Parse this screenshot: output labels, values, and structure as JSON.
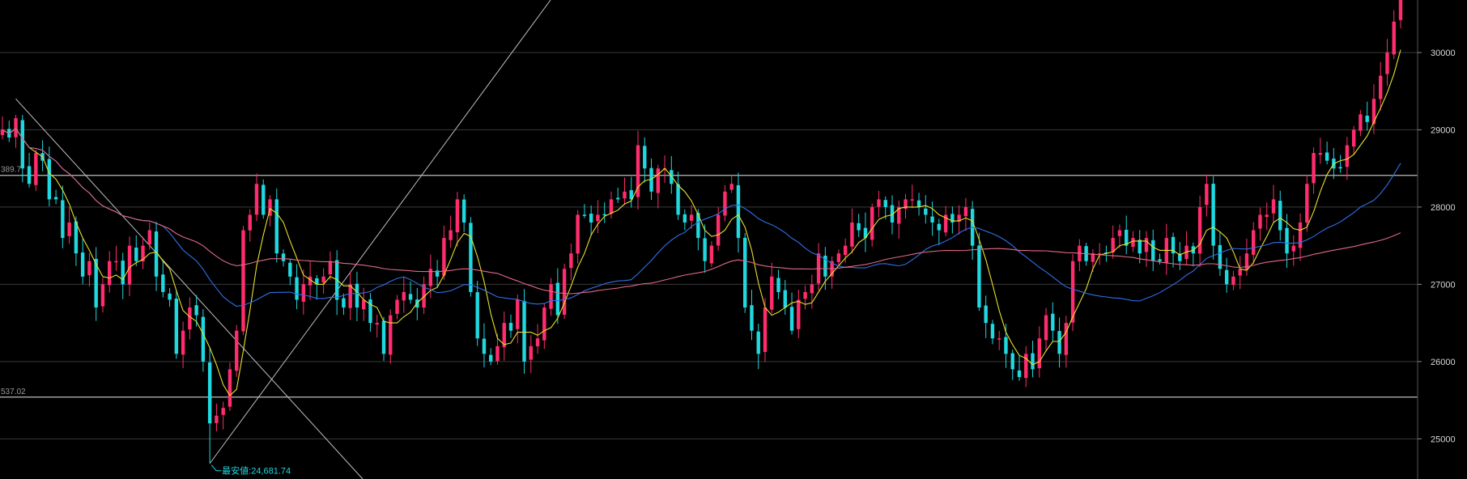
{
  "chart_data": {
    "type": "candlestick",
    "title": "",
    "xlabel": "",
    "ylabel": "",
    "ylim": [
      24480,
      30680
    ],
    "grid": true,
    "y_ticks": [
      25000,
      26000,
      27000,
      28000,
      29000,
      30000
    ],
    "y_tick_labels": [
      "25000",
      "26000",
      "27000",
      "28000",
      "29000",
      "30000"
    ],
    "close": [
      29000,
      28900,
      29150,
      28500,
      28300,
      28700,
      28600,
      28100,
      28100,
      27600,
      27800,
      27400,
      27100,
      27300,
      26700,
      27000,
      27300,
      27300,
      27000,
      27500,
      27300,
      27500,
      27700,
      27100,
      26900,
      26800,
      26100,
      26400,
      26700,
      26600,
      26000,
      25200,
      25300,
      25400,
      25900,
      26400,
      27700,
      27900,
      28300,
      27900,
      28100,
      27400,
      27300,
      27100,
      26800,
      27000,
      27100,
      27000,
      27100,
      27300,
      26800,
      26700,
      27000,
      26700,
      26800,
      26500,
      26500,
      26100,
      26600,
      26800,
      26900,
      26800,
      26700,
      27000,
      27200,
      27100,
      27600,
      27700,
      28100,
      27800,
      26900,
      26300,
      26100,
      26000,
      26200,
      26500,
      26400,
      26800,
      26000,
      26200,
      26300,
      26700,
      27000,
      26600,
      27200,
      27400,
      27900,
      27900,
      27800,
      27900,
      27900,
      28100,
      28100,
      28200,
      28100,
      28800,
      28500,
      28200,
      28500,
      28500,
      28300,
      27900,
      27800,
      27900,
      27600,
      27300,
      27500,
      27900,
      28200,
      28300,
      27600,
      26700,
      26400,
      26100,
      26700,
      27100,
      26900,
      26700,
      26400,
      26800,
      26900,
      27000,
      27400,
      27100,
      27300,
      27400,
      27500,
      27800,
      27700,
      27600,
      28000,
      28100,
      28000,
      27800,
      28000,
      28100,
      28100,
      28000,
      27900,
      27800,
      27700,
      27900,
      27800,
      27900,
      28000,
      27500,
      26700,
      26500,
      26300,
      26300,
      26100,
      25900,
      25800,
      26100,
      25900,
      26300,
      26600,
      26400,
      26100,
      26500,
      27300,
      27500,
      27300,
      27400,
      27400,
      27400,
      27600,
      27700,
      27500,
      27600,
      27400,
      27600,
      27300,
      27300,
      27600,
      27400,
      27300,
      27500,
      27400,
      28000,
      28300,
      27500,
      27200,
      27000,
      27100,
      27200,
      27400,
      27700,
      27900,
      27900,
      28100,
      27700,
      27400,
      27500,
      27800,
      28300,
      28700,
      28700,
      28600,
      28500,
      28500,
      28800,
      29000,
      29200,
      29100,
      29400,
      29700,
      30000,
      30400,
      30680
    ],
    "ma_short_color": "#e8e02a",
    "ma_mid_color": "#2f6fe8",
    "ma_long_color": "#e06a86",
    "up_color": "#ff2d6d",
    "down_color": "#1fd8e0",
    "horizontal_levels": [
      {
        "value": 28410,
        "label": "389.7"
      },
      {
        "value": 25540,
        "label": "537.02"
      }
    ],
    "annotation": {
      "text": "最安値:24,681.74",
      "value": 24681.74
    }
  }
}
